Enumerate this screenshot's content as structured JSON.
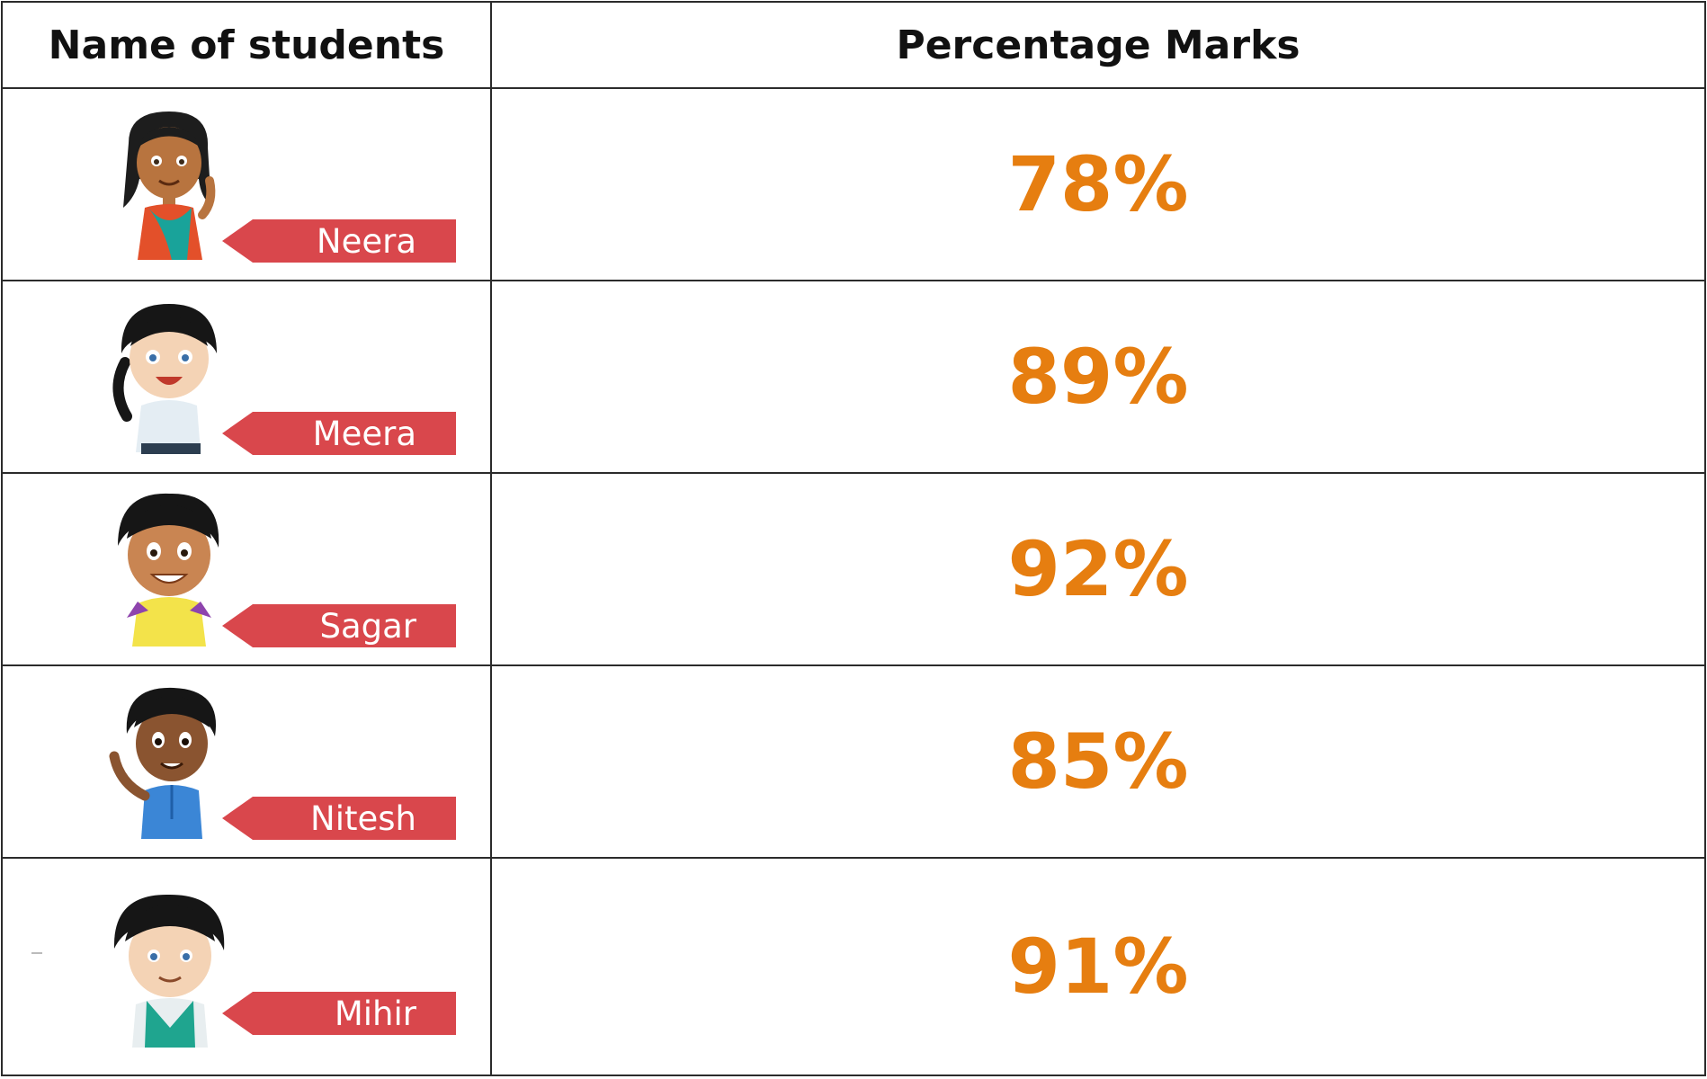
{
  "header": {
    "col_name": "Name of students",
    "col_marks": "Percentage Marks"
  },
  "colors": {
    "tag_red": "#d9474c",
    "marks_orange": "#e67e10"
  },
  "students": [
    {
      "name": "Neera",
      "marks": "78%",
      "avatar_icon": "girl-saree-waving-avatar"
    },
    {
      "name": "Meera",
      "marks": "89%",
      "avatar_icon": "girl-ponytail-avatar"
    },
    {
      "name": "Sagar",
      "marks": "92%",
      "avatar_icon": "boy-yellow-shirt-avatar"
    },
    {
      "name": "Nitesh",
      "marks": "85%",
      "avatar_icon": "boy-blue-kurta-waving-avatar"
    },
    {
      "name": "Mihir",
      "marks": "91%",
      "avatar_icon": "boy-green-vest-avatar"
    }
  ]
}
